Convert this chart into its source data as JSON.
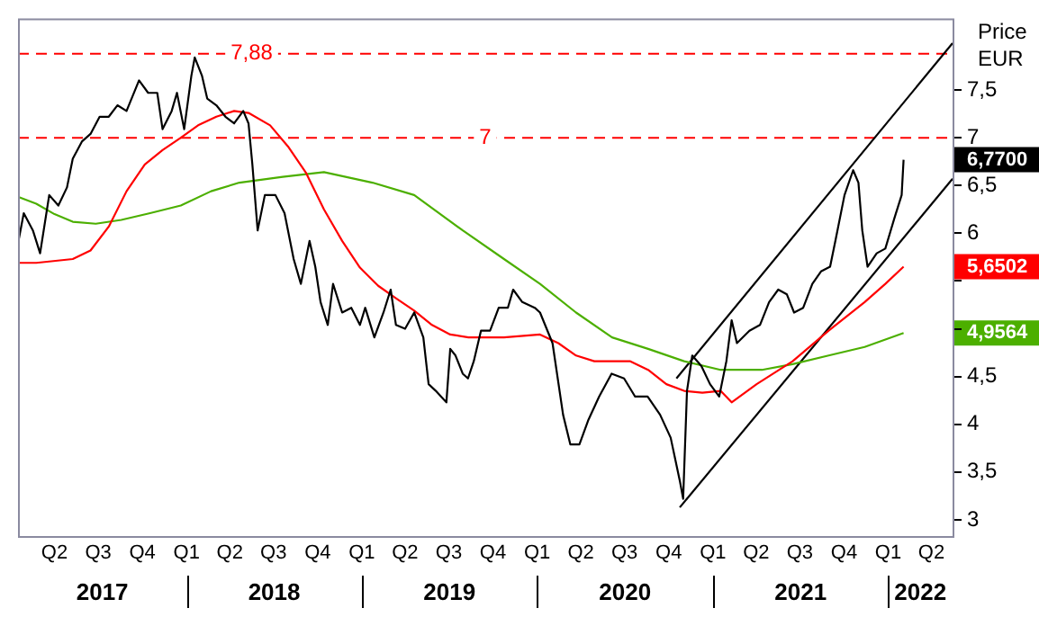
{
  "chart_data": {
    "type": "line",
    "ylabel": "Price EUR",
    "xlim": [
      "2017-01-15",
      "2022-05-15"
    ],
    "ylim": [
      2.83,
      8.25
    ],
    "xticks": [
      {
        "value": "2017-04-01",
        "label": "Q2"
      },
      {
        "value": "2017-07-01",
        "label": "Q3"
      },
      {
        "value": "2017-10-01",
        "label": "Q4"
      },
      {
        "value": "2018-01-01",
        "label": "Q1"
      },
      {
        "value": "2018-04-01",
        "label": "Q2"
      },
      {
        "value": "2018-07-01",
        "label": "Q3"
      },
      {
        "value": "2018-10-01",
        "label": "Q4"
      },
      {
        "value": "2019-01-01",
        "label": "Q1"
      },
      {
        "value": "2019-04-01",
        "label": "Q2"
      },
      {
        "value": "2019-07-01",
        "label": "Q3"
      },
      {
        "value": "2019-10-01",
        "label": "Q4"
      },
      {
        "value": "2020-01-01",
        "label": "Q1"
      },
      {
        "value": "2020-04-01",
        "label": "Q2"
      },
      {
        "value": "2020-07-01",
        "label": "Q3"
      },
      {
        "value": "2020-10-01",
        "label": "Q4"
      },
      {
        "value": "2021-01-01",
        "label": "Q1"
      },
      {
        "value": "2021-04-01",
        "label": "Q2"
      },
      {
        "value": "2021-07-01",
        "label": "Q3"
      },
      {
        "value": "2021-10-01",
        "label": "Q4"
      },
      {
        "value": "2022-01-01",
        "label": "Q1"
      },
      {
        "value": "2022-04-01",
        "label": "Q2"
      }
    ],
    "yticks": [
      3,
      {
        "value": 3.5,
        "label": "3,5"
      },
      4,
      {
        "value": 4.5,
        "label": "4,5"
      },
      {
        "value": 4.9564,
        "label": "4,9564"
      },
      {
        "value": 5,
        "label": null
      },
      {
        "value": 5.5,
        "label": null
      },
      {
        "value": 5.6502,
        "label": "5,6502"
      },
      6,
      {
        "value": 6.5,
        "label": "6,5"
      },
      {
        "value": 6.77,
        "label": "6,7700"
      },
      7,
      {
        "value": 7.5,
        "label": "7,5"
      }
    ],
    "ref_lines": [
      {
        "axis": "y",
        "value": 7.88,
        "label": "7,88",
        "color": "#ff0000",
        "line_style": "dashed"
      },
      {
        "axis": "y",
        "value": 7,
        "label": "7",
        "color": "#ff0000",
        "line_style": "dashed"
      }
    ],
    "annotations": [
      "2017",
      "2018",
      "2019",
      "2020",
      "2021",
      "2022"
    ],
    "grid": false,
    "legend": false,
    "marker": "none",
    "series": [
      {
        "color": "#000000",
        "x": [
          "2017-01-16",
          "2017-01-27",
          "2017-02-15",
          "2017-03-02",
          "2017-03-21",
          "2017-04-09",
          "2017-04-27",
          "2017-05-09",
          "2017-05-28",
          "2017-06-15",
          "2017-07-04",
          "2017-07-23",
          "2017-08-10",
          "2017-08-29",
          "2017-09-24",
          "2017-10-13",
          "2017-11-01",
          "2017-11-12",
          "2017-12-01",
          "2017-12-12",
          "2017-12-27",
          "2018-01-11",
          "2018-01-18",
          "2018-02-02",
          "2018-02-13",
          "2018-03-04",
          "2018-03-23",
          "2018-04-10",
          "2018-04-29",
          "2018-05-10",
          "2018-05-18",
          "2018-05-29",
          "2018-06-13",
          "2018-07-05",
          "2018-07-24",
          "2018-08-12",
          "2018-08-27",
          "2018-09-14",
          "2018-09-26",
          "2018-10-07",
          "2018-10-22",
          "2018-11-02",
          "2018-11-21",
          "2018-12-10",
          "2018-12-28",
          "2019-01-08",
          "2019-01-27",
          "2019-02-15",
          "2019-03-02",
          "2019-03-13",
          "2019-04-01",
          "2019-04-20",
          "2019-05-09",
          "2019-05-20",
          "2019-06-04",
          "2019-06-15",
          "2019-06-26",
          "2019-07-04",
          "2019-07-15",
          "2019-07-30",
          "2019-08-10",
          "2019-08-22",
          "2019-09-06",
          "2019-09-25",
          "2019-10-13",
          "2019-11-01",
          "2019-11-12",
          "2019-12-01",
          "2019-12-27",
          "2020-01-07",
          "2020-02-02",
          "2020-02-24",
          "2020-03-10",
          "2020-03-29",
          "2020-04-17",
          "2020-05-09",
          "2020-06-04",
          "2020-06-30",
          "2020-07-23",
          "2020-08-18",
          "2020-09-13",
          "2020-10-05",
          "2020-10-24",
          "2020-10-31",
          "2020-11-08",
          "2020-11-19",
          "2020-12-08",
          "2020-12-26",
          "2021-01-14",
          "2021-01-29",
          "2021-02-09",
          "2021-02-20",
          "2021-03-18",
          "2021-04-09",
          "2021-04-28",
          "2021-05-17",
          "2021-06-04",
          "2021-06-19",
          "2021-07-08",
          "2021-07-27",
          "2021-08-14",
          "2021-09-02",
          "2021-09-13",
          "2021-10-02",
          "2021-10-20",
          "2021-10-31",
          "2021-11-08",
          "2021-11-19",
          "2021-12-08",
          "2021-12-26",
          "2022-01-14",
          "2022-01-29",
          "2022-02-02"
        ],
        "values": [
          5.92,
          6.21,
          6.03,
          5.79,
          6.4,
          6.29,
          6.48,
          6.78,
          6.96,
          7.04,
          7.22,
          7.22,
          7.34,
          7.28,
          7.6,
          7.47,
          7.47,
          7.09,
          7.28,
          7.47,
          7.09,
          7.65,
          7.84,
          7.65,
          7.41,
          7.34,
          7.22,
          7.15,
          7.28,
          7.15,
          6.72,
          6.03,
          6.4,
          6.4,
          6.21,
          5.73,
          5.47,
          5.92,
          5.65,
          5.28,
          5.04,
          5.47,
          5.17,
          5.22,
          5.04,
          5.22,
          4.91,
          5.17,
          5.41,
          5.04,
          5.0,
          5.17,
          4.91,
          4.42,
          4.35,
          4.29,
          4.23,
          4.79,
          4.72,
          4.53,
          4.48,
          4.66,
          4.98,
          4.98,
          5.22,
          5.22,
          5.41,
          5.28,
          5.22,
          5.17,
          4.85,
          4.1,
          3.79,
          3.79,
          4.05,
          4.29,
          4.53,
          4.48,
          4.29,
          4.29,
          4.1,
          3.86,
          3.41,
          3.22,
          4.35,
          4.72,
          4.61,
          4.42,
          4.29,
          4.66,
          5.09,
          4.85,
          4.98,
          5.04,
          5.28,
          5.41,
          5.36,
          5.17,
          5.22,
          5.47,
          5.6,
          5.65,
          5.92,
          6.4,
          6.66,
          6.53,
          6.03,
          5.65,
          5.79,
          5.84,
          6.16,
          6.4,
          6.77
        ]
      },
      {
        "color": "#ff0000",
        "x": [
          "2017-01-16",
          "2017-02-22",
          "2017-05-09",
          "2017-06-15",
          "2017-07-23",
          "2017-08-29",
          "2017-10-06",
          "2017-11-12",
          "2017-12-20",
          "2018-01-25",
          "2018-03-04",
          "2018-04-10",
          "2018-05-10",
          "2018-06-24",
          "2018-07-31",
          "2018-09-07",
          "2018-10-14",
          "2018-11-21",
          "2018-12-28",
          "2019-02-04",
          "2019-03-13",
          "2019-04-20",
          "2019-05-27",
          "2019-07-04",
          "2019-08-11",
          "2019-09-17",
          "2019-10-24",
          "2020-01-07",
          "2020-02-14",
          "2020-03-22",
          "2020-04-29",
          "2020-06-05",
          "2020-07-13",
          "2020-08-19",
          "2020-09-26",
          "2020-11-02",
          "2020-12-10",
          "2021-01-17",
          "2021-02-09",
          "2021-04-02",
          "2021-06-16",
          "2021-08-30",
          "2021-11-13",
          "2021-12-26",
          "2022-02-02"
        ],
        "values": [
          5.69,
          5.69,
          5.73,
          5.82,
          6.07,
          6.44,
          6.72,
          6.87,
          7.0,
          7.13,
          7.22,
          7.28,
          7.26,
          7.13,
          6.91,
          6.63,
          6.25,
          5.92,
          5.64,
          5.45,
          5.32,
          5.19,
          5.04,
          4.94,
          4.91,
          4.91,
          4.91,
          4.94,
          4.85,
          4.72,
          4.66,
          4.66,
          4.66,
          4.57,
          4.42,
          4.35,
          4.33,
          4.35,
          4.23,
          4.42,
          4.66,
          4.98,
          5.28,
          5.47,
          5.6502
        ]
      },
      {
        "color": "#4caf00",
        "x": [
          "2017-01-16",
          "2017-02-22",
          "2017-04-01",
          "2017-05-09",
          "2017-06-26",
          "2017-08-18",
          "2017-10-17",
          "2017-12-20",
          "2018-02-21",
          "2018-04-21",
          "2018-07-20",
          "2018-10-14",
          "2019-01-23",
          "2019-04-20",
          "2019-07-30",
          "2019-10-24",
          "2020-01-07",
          "2020-03-22",
          "2020-06-05",
          "2020-08-19",
          "2020-11-02",
          "2021-01-17",
          "2021-04-13",
          "2021-06-16",
          "2021-08-30",
          "2021-11-13",
          "2022-02-02"
        ],
        "values": [
          6.38,
          6.31,
          6.2,
          6.12,
          6.1,
          6.14,
          6.21,
          6.29,
          6.44,
          6.53,
          6.59,
          6.64,
          6.53,
          6.4,
          6.03,
          5.73,
          5.47,
          5.17,
          4.91,
          4.79,
          4.66,
          4.57,
          4.57,
          4.63,
          4.72,
          4.81,
          4.9564
        ]
      },
      {
        "type": "line",
        "color": "#000000",
        "x": [
          "2020-10-17",
          "2022-05-15"
        ],
        "values": [
          4.48,
          7.99
        ]
      },
      {
        "type": "line",
        "color": "#000000",
        "x": [
          "2020-10-24",
          "2022-05-15"
        ],
        "values": [
          3.13,
          6.57
        ]
      }
    ]
  }
}
